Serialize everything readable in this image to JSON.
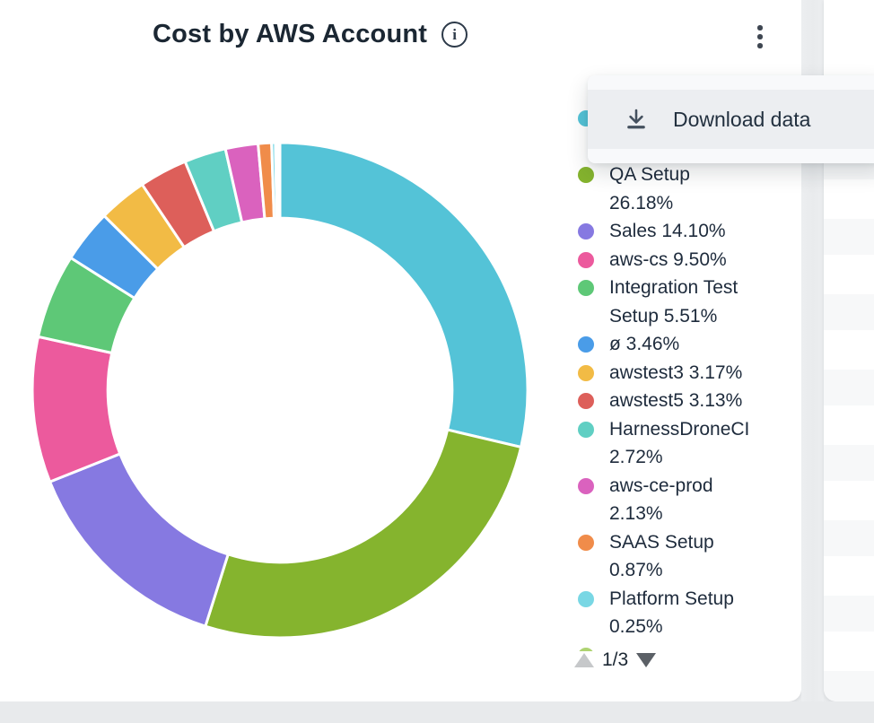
{
  "card": {
    "title": "Cost by AWS Account"
  },
  "menu": {
    "items": [
      {
        "icon": "download-icon",
        "label": "Download data"
      }
    ]
  },
  "legend": {
    "page_indicator": "1/3",
    "items": [
      {
        "color": "#54c3d7",
        "lines": [],
        "occluded_by_menu": true
      },
      {
        "color": "#85b42e",
        "lines": [
          "QA Setup",
          "26.18%"
        ]
      },
      {
        "color": "#8679e1",
        "lines": [
          "Sales 14.10%"
        ]
      },
      {
        "color": "#ec5a9d",
        "lines": [
          "aws-cs 9.50%"
        ]
      },
      {
        "color": "#5ec877",
        "lines": [
          "Integration Test",
          "Setup 5.51%"
        ]
      },
      {
        "color": "#4a9ce8",
        "lines": [
          "ø 3.46%"
        ]
      },
      {
        "color": "#f2bb45",
        "lines": [
          "awstest3 3.17%"
        ]
      },
      {
        "color": "#dd5f5a",
        "lines": [
          "awstest5 3.13%"
        ]
      },
      {
        "color": "#60cfc3",
        "lines": [
          "HarnessDroneCI",
          "2.72%"
        ]
      },
      {
        "color": "#da62be",
        "lines": [
          "aws-ce-prod",
          "2.13%"
        ]
      },
      {
        "color": "#f08c4a",
        "lines": [
          "SAAS Setup",
          "0.87%"
        ]
      },
      {
        "color": "#79d7e4",
        "lines": [
          "Platform Setup",
          "0.25%"
        ]
      },
      {
        "color": "#aed371",
        "lines": [],
        "clipped": true
      }
    ]
  },
  "chart_data": {
    "type": "donut",
    "title": "Cost by AWS Account",
    "legend_position": "right",
    "start_angle_deg": 0,
    "inner_radius_ratio": 0.695,
    "segments": [
      {
        "label": "",
        "label_hidden": true,
        "value": 28.69,
        "color": "#54c3d7"
      },
      {
        "label": "QA Setup",
        "value": 26.18,
        "color": "#85b42e"
      },
      {
        "label": "Sales",
        "value": 14.1,
        "color": "#8679e1"
      },
      {
        "label": "aws-cs",
        "value": 9.5,
        "color": "#ec5a9d"
      },
      {
        "label": "Integration Test Setup",
        "value": 5.51,
        "color": "#5ec877"
      },
      {
        "label": "ø",
        "value": 3.46,
        "color": "#4a9ce8"
      },
      {
        "label": "awstest3",
        "value": 3.17,
        "color": "#f2bb45"
      },
      {
        "label": "awstest5",
        "value": 3.13,
        "color": "#dd5f5a"
      },
      {
        "label": "HarnessDroneCI",
        "value": 2.72,
        "color": "#60cfc3"
      },
      {
        "label": "aws-ce-prod",
        "value": 2.13,
        "color": "#da62be"
      },
      {
        "label": "SAAS Setup",
        "value": 0.87,
        "color": "#f08c4a"
      },
      {
        "label": "Platform Setup",
        "value": 0.25,
        "color": "#79d7e4"
      },
      {
        "label": "",
        "label_hidden": true,
        "value": 0.15,
        "color": "#aed371"
      },
      {
        "label": "",
        "label_hidden": true,
        "value": 0.14,
        "color": "#cdeef3"
      }
    ]
  },
  "colors": {
    "title_text": "#1b2733",
    "legend_text": "#1e2b3c",
    "menu_row_bg": "#eceef1",
    "page_bg": "#e9ebed"
  }
}
